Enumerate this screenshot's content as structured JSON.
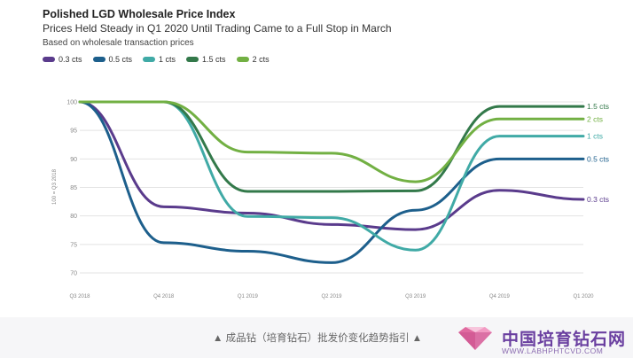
{
  "chart_data": {
    "type": "line",
    "title": "Polished LGD Wholesale Price Index",
    "subtitle": "Prices Held Steady in Q1 2020 Until Trading Came to a Full Stop in March",
    "note": "Based on wholesale transaction prices",
    "ylabel": "100 = Q3 2018",
    "ylim": [
      70,
      100
    ],
    "yticks": [
      70,
      75,
      80,
      85,
      90,
      95,
      100
    ],
    "categories": [
      "Q3 2018",
      "Q4 2018",
      "Q1 2019",
      "Q2 2019",
      "Q3 2019",
      "Q4 2019",
      "Q1 2020"
    ],
    "series": [
      {
        "name": "0.3 cts",
        "color": "#5a3b8c",
        "values": [
          100,
          81.6,
          80.5,
          78.5,
          77.6,
          84.5,
          82.9
        ],
        "end_label": "0.3 cts"
      },
      {
        "name": "0.5 cts",
        "color": "#1d5f8c",
        "values": [
          100,
          75.3,
          73.8,
          71.8,
          81,
          90,
          90
        ],
        "end_label": "0.5 cts"
      },
      {
        "name": "1 cts",
        "color": "#40aaa6",
        "values": [
          100,
          100,
          79.9,
          79.7,
          74,
          94,
          94
        ],
        "end_label": "1 cts"
      },
      {
        "name": "1.5 cts",
        "color": "#33794a",
        "values": [
          100,
          100,
          84.3,
          84.3,
          84.4,
          99.2,
          99.2
        ],
        "end_label": "1.5 cts"
      },
      {
        "name": "2 cts",
        "color": "#72b043",
        "values": [
          100,
          100,
          91.2,
          91,
          86,
          97,
          97
        ],
        "end_label": "2 cts"
      }
    ],
    "grid": true,
    "legend_position": "top-left"
  },
  "footer": {
    "caption": "▲ 成品钻（培育钻石）批发价变化趋势指引 ▲",
    "brand": "中国培育钻石网",
    "url": "WWW.LABHPHTCVD.COM"
  }
}
